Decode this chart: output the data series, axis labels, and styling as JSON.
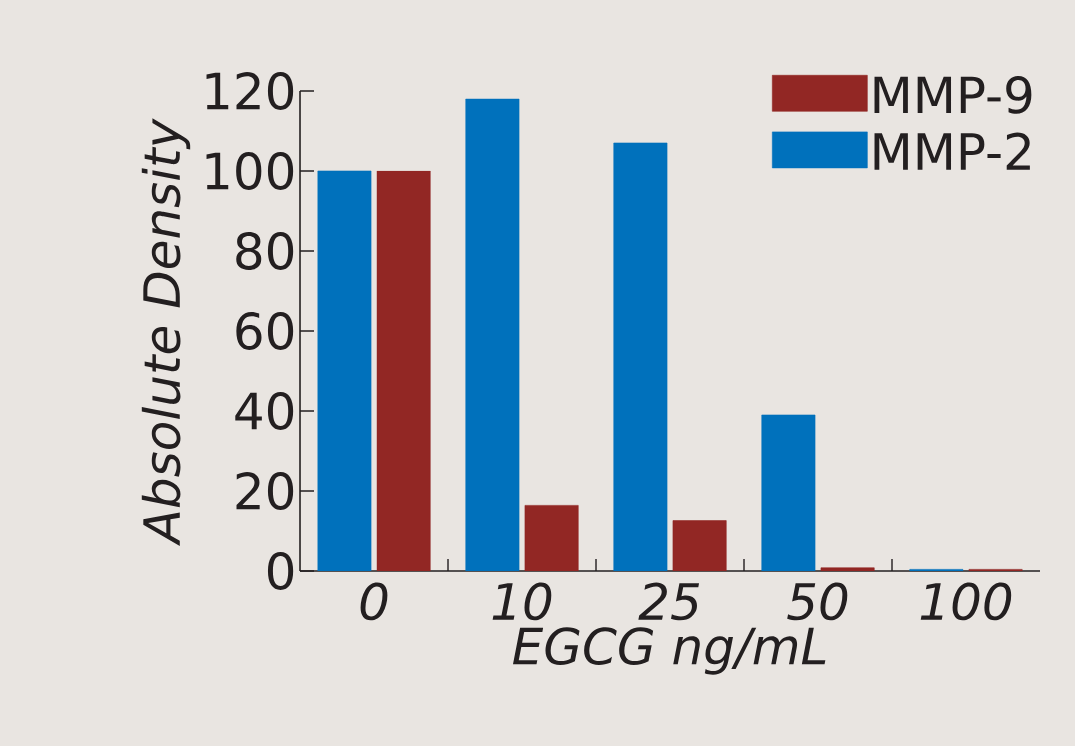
{
  "chart_data": {
    "type": "bar",
    "xlabel": "EGCG ng/mL",
    "ylabel": "Absolute Density",
    "categories": [
      "0",
      "10",
      "25",
      "50",
      "100"
    ],
    "series": [
      {
        "name": "MMP-2",
        "color": "#0071bc",
        "values": [
          100,
          118,
          107,
          39,
          0.4
        ]
      },
      {
        "name": "MMP-9",
        "color": "#922724",
        "values": [
          100,
          16.4,
          12.6,
          0.8,
          0.4
        ]
      }
    ],
    "ylim": [
      0,
      120
    ],
    "yticks": [
      0,
      20,
      40,
      60,
      80,
      100,
      120
    ],
    "grid": false,
    "legend": "top right"
  }
}
